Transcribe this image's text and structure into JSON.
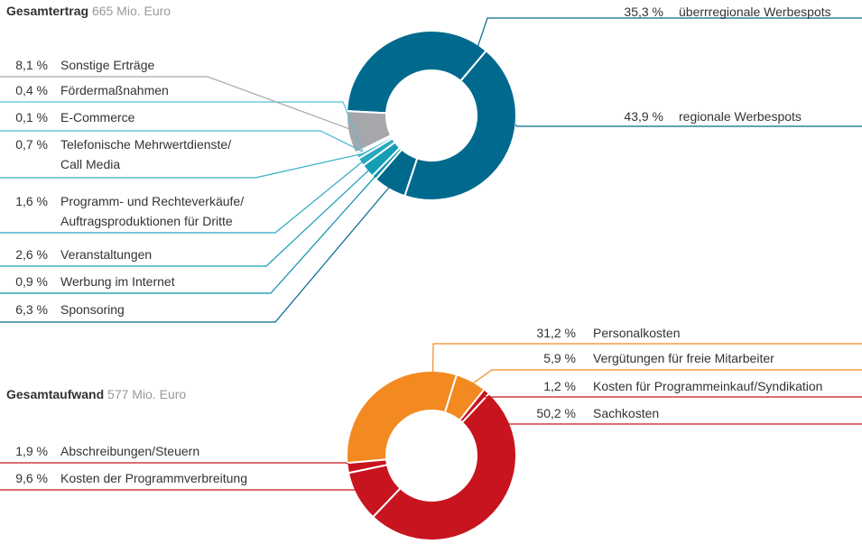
{
  "chart_data": [
    {
      "type": "donut",
      "title": "Gesamtertrag",
      "subtitle": "665 Mio. Euro",
      "categories": [
        "überrregionale Werbespots",
        "regionale Werbespots",
        "Sponsoring",
        "Werbung im Internet",
        "Veranstaltungen",
        "Programm- und Rechteverkäufe/\nAuftragsproduktionen für Dritte",
        "Telefonische Mehrwertdienste/\nCall Media",
        "E-Commerce",
        "Fördermaßnahmen",
        "Sonstige Erträge"
      ],
      "values": [
        35.3,
        43.9,
        6.3,
        0.9,
        2.6,
        1.6,
        0.7,
        0.1,
        0.4,
        8.1
      ],
      "value_labels": [
        "35,3 %",
        "43,9 %",
        "6,3 %",
        "0,9 %",
        "2,6 %",
        "1,6 %",
        "0,7 %",
        "0,1 %",
        "0,4 %",
        "8,1 %"
      ],
      "colors": [
        "#006a8e",
        "#006a8e",
        "#00698c",
        "#0a8fab",
        "#159db6",
        "#27a9c0",
        "#36b2c7",
        "#45bacd",
        "#55c1d2",
        "#a5a7aa"
      ]
    },
    {
      "type": "donut",
      "title": "Gesamtaufwand",
      "subtitle": "577 Mio. Euro",
      "categories": [
        "Personalkosten",
        "Vergütungen für freie Mitarbeiter",
        "Kosten für Programmeinkauf/Syndikation",
        "Sachkosten",
        "Kosten der Programmverbreitung",
        "Abschreibungen/Steuern"
      ],
      "values": [
        31.2,
        5.9,
        1.2,
        50.2,
        9.6,
        1.9
      ],
      "value_labels": [
        "31,2 %",
        "5,9 %",
        "1,2 %",
        "50,2 %",
        "9,6 %",
        "1,9 %"
      ],
      "colors": [
        "#f28a21",
        "#f28a21",
        "#c8141f",
        "#c8141f",
        "#c8141f",
        "#c8141f"
      ]
    }
  ]
}
